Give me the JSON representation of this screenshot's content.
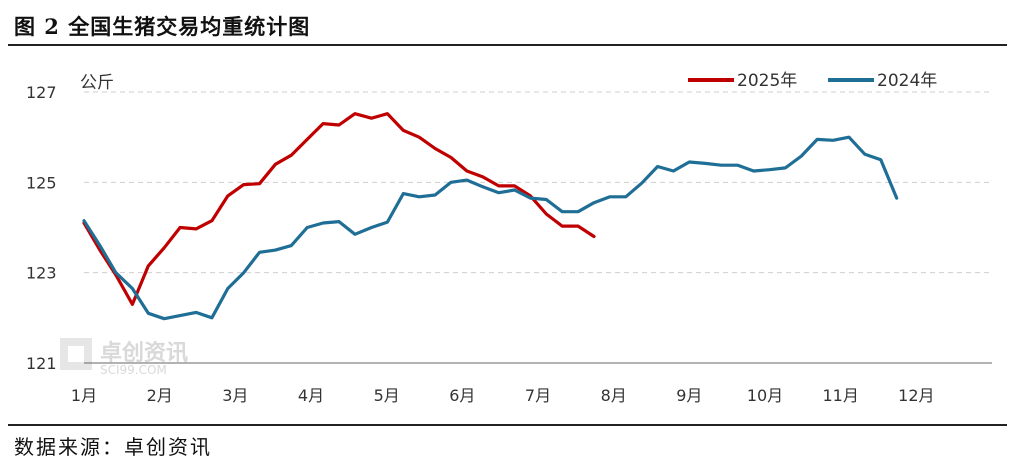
{
  "header": {
    "title": "图 2  全国生猪交易均重统计图"
  },
  "footer": {
    "source": "数据来源：卓创资讯"
  },
  "watermark": {
    "name": "卓创资讯",
    "site": "SCI99.COM"
  },
  "chart_data": {
    "type": "line",
    "ylabel": "公斤",
    "ylim": [
      121,
      127
    ],
    "yticks": [
      121,
      123,
      125,
      127
    ],
    "xticks": [
      "1月",
      "2月",
      "3月",
      "4月",
      "5月",
      "6月",
      "7月",
      "8月",
      "9月",
      "10月",
      "11月",
      "12月"
    ],
    "xrange": [
      1,
      13
    ],
    "grid": "horizontal dashed",
    "legend_position": "top-right",
    "series": [
      {
        "name": "2025年",
        "color": "#c00000",
        "points": [
          [
            1.0,
            124.1
          ],
          [
            1.21,
            123.5
          ],
          [
            1.42,
            122.95
          ],
          [
            1.64,
            122.3
          ],
          [
            1.85,
            123.15
          ],
          [
            2.06,
            123.55
          ],
          [
            2.27,
            124.0
          ],
          [
            2.48,
            123.97
          ],
          [
            2.69,
            124.15
          ],
          [
            2.9,
            124.7
          ],
          [
            3.11,
            124.95
          ],
          [
            3.32,
            124.97
          ],
          [
            3.53,
            125.4
          ],
          [
            3.74,
            125.6
          ],
          [
            3.95,
            125.95
          ],
          [
            4.16,
            126.3
          ],
          [
            4.37,
            126.27
          ],
          [
            4.58,
            126.52
          ],
          [
            4.8,
            126.42
          ],
          [
            5.01,
            126.52
          ],
          [
            5.22,
            126.15
          ],
          [
            5.43,
            126.0
          ],
          [
            5.64,
            125.75
          ],
          [
            5.85,
            125.55
          ],
          [
            6.06,
            125.25
          ],
          [
            6.27,
            125.12
          ],
          [
            6.48,
            124.92
          ],
          [
            6.69,
            124.92
          ],
          [
            6.9,
            124.7
          ],
          [
            7.11,
            124.3
          ],
          [
            7.32,
            124.03
          ],
          [
            7.53,
            124.03
          ],
          [
            7.74,
            123.8
          ]
        ]
      },
      {
        "name": "2024年",
        "color": "#1f6e96",
        "points": [
          [
            1.0,
            124.15
          ],
          [
            1.21,
            123.6
          ],
          [
            1.42,
            123.0
          ],
          [
            1.64,
            122.65
          ],
          [
            1.85,
            122.1
          ],
          [
            2.06,
            121.98
          ],
          [
            2.27,
            122.05
          ],
          [
            2.48,
            122.12
          ],
          [
            2.69,
            122.0
          ],
          [
            2.9,
            122.65
          ],
          [
            3.11,
            123.0
          ],
          [
            3.32,
            123.45
          ],
          [
            3.53,
            123.5
          ],
          [
            3.74,
            123.6
          ],
          [
            3.95,
            124.0
          ],
          [
            4.16,
            124.1
          ],
          [
            4.37,
            124.13
          ],
          [
            4.58,
            123.85
          ],
          [
            4.8,
            124.0
          ],
          [
            5.01,
            124.12
          ],
          [
            5.22,
            124.75
          ],
          [
            5.43,
            124.68
          ],
          [
            5.64,
            124.72
          ],
          [
            5.85,
            125.0
          ],
          [
            6.06,
            125.05
          ],
          [
            6.27,
            124.9
          ],
          [
            6.48,
            124.77
          ],
          [
            6.69,
            124.83
          ],
          [
            6.9,
            124.65
          ],
          [
            7.11,
            124.62
          ],
          [
            7.32,
            124.35
          ],
          [
            7.53,
            124.35
          ],
          [
            7.74,
            124.55
          ],
          [
            7.95,
            124.68
          ],
          [
            8.16,
            124.68
          ],
          [
            8.37,
            124.98
          ],
          [
            8.58,
            125.35
          ],
          [
            8.79,
            125.25
          ],
          [
            9.0,
            125.45
          ],
          [
            9.21,
            125.42
          ],
          [
            9.42,
            125.38
          ],
          [
            9.64,
            125.38
          ],
          [
            9.85,
            125.25
          ],
          [
            10.06,
            125.28
          ],
          [
            10.27,
            125.32
          ],
          [
            10.48,
            125.58
          ],
          [
            10.69,
            125.95
          ],
          [
            10.9,
            125.93
          ],
          [
            11.11,
            126.0
          ],
          [
            11.32,
            125.62
          ],
          [
            11.53,
            125.5
          ],
          [
            11.74,
            124.65
          ]
        ]
      }
    ]
  }
}
